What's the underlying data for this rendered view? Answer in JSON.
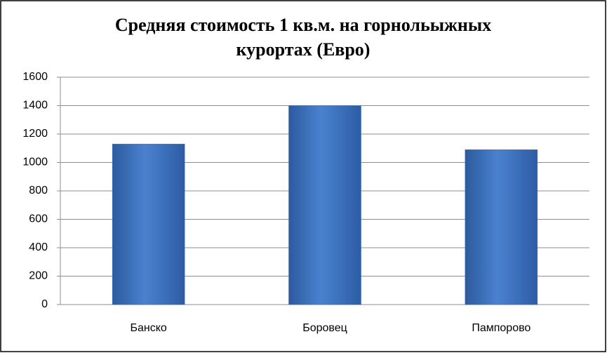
{
  "chart_data": {
    "type": "bar",
    "title": "Средняя стоимость 1 кв.м. на горнольыжных курортах (Евро)",
    "categories": [
      "Банско",
      "Боровец",
      "Пампорово"
    ],
    "values": [
      1130,
      1400,
      1090
    ],
    "color": "#3f74c0",
    "ylim": [
      0,
      1600
    ],
    "yticks": [
      0,
      200,
      400,
      600,
      800,
      1000,
      1200,
      1400,
      1600
    ],
    "grid": true
  }
}
